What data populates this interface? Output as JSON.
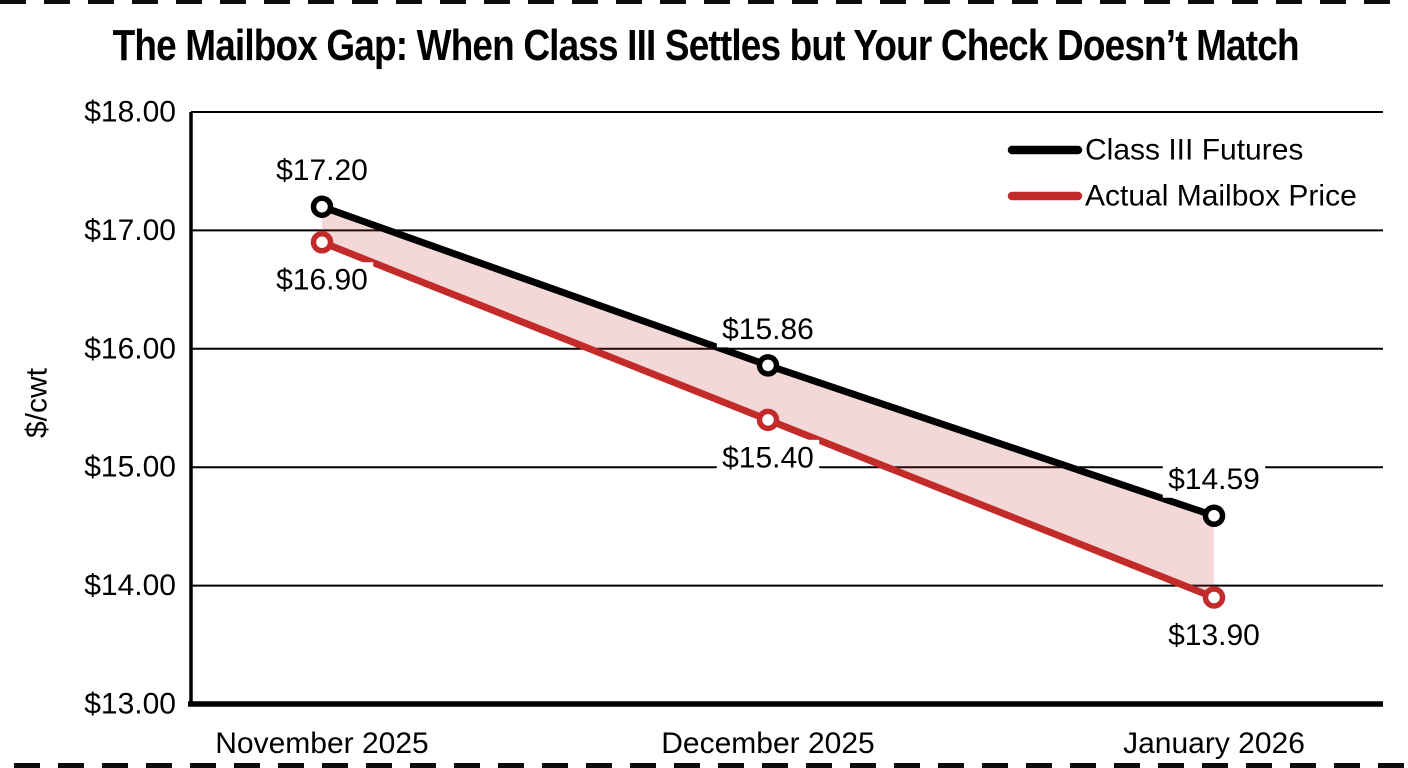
{
  "chart_data": {
    "type": "line",
    "title": "The Mailbox Gap: When Class III Settles but Your Check Doesn’t Match",
    "xlabel": "",
    "ylabel": "$/cwt",
    "ylim": [
      13.0,
      18.0
    ],
    "ytick_values": [
      18,
      17,
      16,
      15,
      14,
      13
    ],
    "ytick_labels": [
      "$18.00",
      "$17.00",
      "$16.00",
      "$15.00",
      "$14.00",
      "$13.00"
    ],
    "categories": [
      "November 2025",
      "December 2025",
      "January 2026"
    ],
    "series": [
      {
        "name": "Class III Futures",
        "color": "#000000",
        "values": [
          17.2,
          15.86,
          14.59
        ],
        "point_labels": [
          "$17.20",
          "$15.86",
          "$14.59"
        ],
        "label_position": "above"
      },
      {
        "name": "Actual Mailbox Price",
        "color": "#c32b2b",
        "values": [
          16.9,
          15.4,
          13.9
        ],
        "point_labels": [
          "$16.90",
          "$15.40",
          "$13.90"
        ],
        "label_position": "below"
      }
    ],
    "gap_fill_color": "rgba(195, 43, 43, 0.19)",
    "axis_color": "#000000",
    "grid": true,
    "legend_position": "top-right",
    "marker": "open-circle"
  }
}
